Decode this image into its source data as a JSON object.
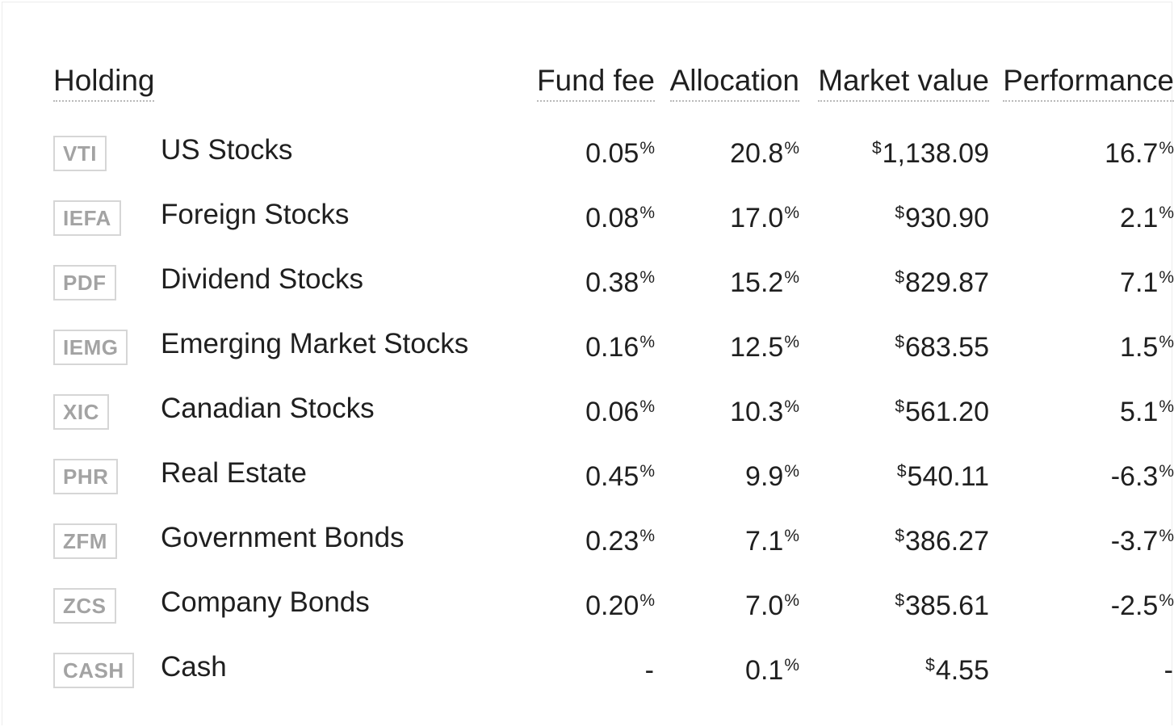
{
  "header": {
    "holding": "Holding",
    "fund_fee": "Fund fee",
    "allocation": "Allocation",
    "market_value": "Market value",
    "performance": "Performance"
  },
  "units": {
    "percent": "%",
    "currency": "$"
  },
  "colors": {
    "positive": "#7fb7b9",
    "negative": "#cdcdcd",
    "text": "#1f1f1f",
    "ticker_border": "#d6d6d6",
    "ticker_text": "#a3a3a3"
  },
  "rows": [
    {
      "ticker": "VTI",
      "name": "US Stocks",
      "fee": "0.05",
      "allocation": "20.8",
      "market_value": "1,138.09",
      "performance": "16.7",
      "trend": "positive"
    },
    {
      "ticker": "IEFA",
      "name": "Foreign Stocks",
      "fee": "0.08",
      "allocation": "17.0",
      "market_value": "930.90",
      "performance": "2.1",
      "trend": "positive"
    },
    {
      "ticker": "PDF",
      "name": "Dividend Stocks",
      "fee": "0.38",
      "allocation": "15.2",
      "market_value": "829.87",
      "performance": "7.1",
      "trend": "positive"
    },
    {
      "ticker": "IEMG",
      "name": "Emerging Market Stocks",
      "fee": "0.16",
      "allocation": "12.5",
      "market_value": "683.55",
      "performance": "1.5",
      "trend": "positive"
    },
    {
      "ticker": "XIC",
      "name": "Canadian Stocks",
      "fee": "0.06",
      "allocation": "10.3",
      "market_value": "561.20",
      "performance": "5.1",
      "trend": "positive"
    },
    {
      "ticker": "PHR",
      "name": "Real Estate",
      "fee": "0.45",
      "allocation": "9.9",
      "market_value": "540.11",
      "performance": "-6.3",
      "trend": "negative"
    },
    {
      "ticker": "ZFM",
      "name": "Government Bonds",
      "fee": "0.23",
      "allocation": "7.1",
      "market_value": "386.27",
      "performance": "-3.7",
      "trend": "negative"
    },
    {
      "ticker": "ZCS",
      "name": "Company Bonds",
      "fee": "0.20",
      "allocation": "7.0",
      "market_value": "385.61",
      "performance": "-2.5",
      "trend": "negative"
    },
    {
      "ticker": "CASH",
      "name": "Cash",
      "fee": "-",
      "allocation": "0.1",
      "market_value": "4.55",
      "performance": "-",
      "trend": "none"
    }
  ]
}
